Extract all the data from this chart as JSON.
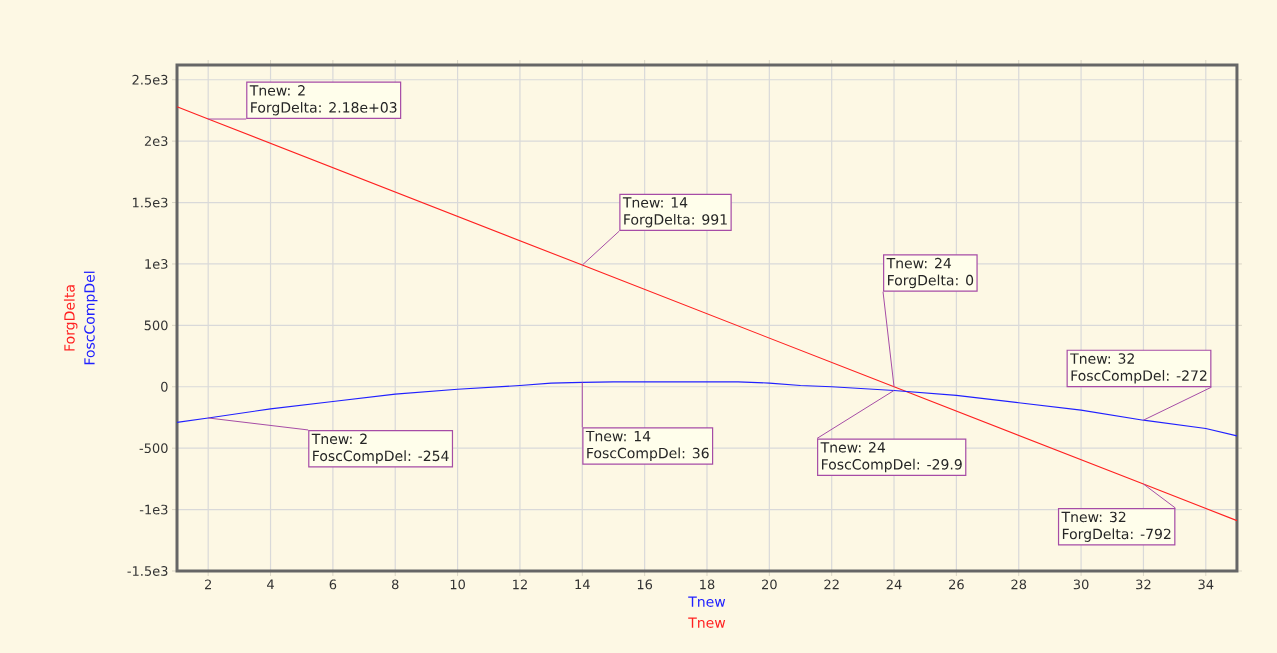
{
  "chart_data": {
    "type": "line",
    "xlabel": "Tnew",
    "x": [
      1,
      2,
      4,
      6,
      8,
      10,
      12,
      13,
      14,
      15,
      16,
      18,
      19,
      20,
      21,
      22,
      24,
      26,
      28,
      30,
      32,
      34,
      35
    ],
    "series": [
      {
        "name": "ForgDelta",
        "color": "#ff2020",
        "x": [
          1,
          2,
          14,
          24,
          32,
          35
        ],
        "values": [
          2280,
          2180,
          991,
          0,
          -792,
          -1090
        ]
      },
      {
        "name": "FoscCompDel",
        "color": "#2020ff",
        "values": [
          -290,
          -254,
          -180,
          -120,
          -60,
          -20,
          10,
          30,
          36,
          40,
          40,
          40,
          40,
          30,
          10,
          0,
          -29.9,
          -70,
          -130,
          -190,
          -272,
          -340,
          -400
        ]
      }
    ],
    "xlim": [
      1,
      35
    ],
    "ylim": [
      -1500,
      2620
    ],
    "xticks": [
      2,
      4,
      6,
      8,
      10,
      12,
      14,
      16,
      18,
      20,
      22,
      24,
      26,
      28,
      30,
      32,
      34
    ],
    "yticks": [
      {
        "value": -1500,
        "label": "-1.5e3"
      },
      {
        "value": -1000,
        "label": "-1e3"
      },
      -500,
      0,
      500,
      {
        "value": 1000,
        "label": "1e3"
      },
      {
        "value": 1500,
        "label": "1.5e3"
      },
      {
        "value": 2000,
        "label": "2e3"
      },
      {
        "value": 2500,
        "label": "2.5e3"
      }
    ],
    "grid": true,
    "marker": "none",
    "line_style": "solid",
    "annotations": [
      {
        "text": "Tnew: 2\nForgDelta: 2.18e+03",
        "x": 2,
        "y": 2180
      },
      {
        "text": "Tnew: 14\nForgDelta: 991",
        "x": 14,
        "y": 991
      },
      {
        "text": "Tnew: 24\nForgDelta: 0",
        "x": 24,
        "y": 0
      },
      {
        "text": "Tnew: 32\nFoscCompDel: -272",
        "x": 32,
        "y": -272
      },
      {
        "text": "Tnew: 2\nFoscCompDel: -254",
        "x": 2,
        "y": -254
      },
      {
        "text": "Tnew: 14\nFoscCompDel: 36",
        "x": 14,
        "y": 36
      },
      {
        "text": "Tnew: 24\nFoscCompDel: -29.9",
        "x": 24,
        "y": -29.9
      },
      {
        "text": "Tnew: 32\nForgDelta: -792",
        "x": 32,
        "y": -792
      }
    ]
  }
}
